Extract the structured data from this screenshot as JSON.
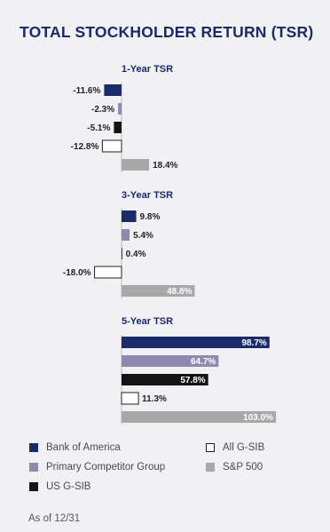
{
  "title": "TOTAL STOCKHOLDER RETURN (TSR)",
  "footnote": "As of 12/31",
  "colors": {
    "Bank of America": "#1b2a6b",
    "Primary Competitor Group": "#8d8ab2",
    "US G-SIB": "#141414",
    "All G-SIB": "#ffffff",
    "S&P 500": "#a8a8a8"
  },
  "legend": [
    {
      "name": "Bank of America",
      "color": "#1b2a6b"
    },
    {
      "name": "All G-SIB",
      "color": "#ffffff"
    },
    {
      "name": "Primary Competitor Group",
      "color": "#8d8ab2"
    },
    {
      "name": "S&P 500",
      "color": "#a8a8a8"
    },
    {
      "name": "US G-SIB",
      "color": "#141414"
    }
  ],
  "chart_data": {
    "type": "bar",
    "orientation": "horizontal",
    "unit": "%",
    "categories": [
      "Bank of America",
      "Primary Competitor Group",
      "US G-SIB",
      "All G-SIB",
      "S&P 500"
    ],
    "groups": [
      {
        "label": "1-Year TSR",
        "values": [
          -11.6,
          -2.3,
          -5.1,
          -12.8,
          18.4
        ],
        "labels": [
          "-11.6%",
          "-2.3%",
          "-5.1%",
          "-12.8%",
          "18.4%"
        ]
      },
      {
        "label": "3-Year TSR",
        "values": [
          9.8,
          5.4,
          0.4,
          -18.0,
          48.8
        ],
        "labels": [
          "9.8%",
          "5.4%",
          "0.4%",
          "-18.0%",
          "48.8%"
        ]
      },
      {
        "label": "5-Year TSR",
        "values": [
          98.7,
          64.7,
          57.8,
          11.3,
          103.0
        ],
        "labels": [
          "98.7%",
          "64.7%",
          "57.8%",
          "11.3%",
          "103.0%"
        ]
      }
    ]
  }
}
